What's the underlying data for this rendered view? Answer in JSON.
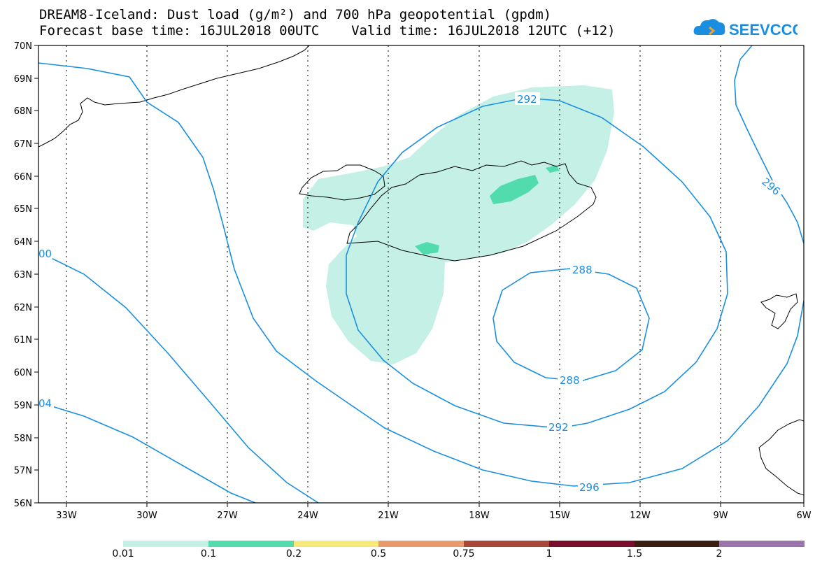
{
  "header": {
    "title_line1": "DREAM8-Iceland: Dust load (g/m²) and 700 hPa geopotential (gpdm)",
    "title_line2": "Forecast base time: 16JUL2018 00UTC    Valid time: 16JUL2018 12UTC (+12)"
  },
  "logo": {
    "text": "SEEVCCC",
    "icon": "cloud-icon",
    "color": "#1a8fe0"
  },
  "map": {
    "lat_labels": [
      "70N",
      "69N",
      "68N",
      "67N",
      "66N",
      "65N",
      "64N",
      "63N",
      "62N",
      "61N",
      "60N",
      "59N",
      "58N",
      "57N",
      "56N"
    ],
    "lon_labels": [
      "33W",
      "30W",
      "27W",
      "24W",
      "21W",
      "18W",
      "15W",
      "12W",
      "9W",
      "6W"
    ],
    "contour_labels": [
      "292",
      "296",
      "288",
      "288",
      "292",
      "296",
      "00",
      "04"
    ],
    "contour_color": "#1a8fe0",
    "dust_color_low": "#c4f0e6",
    "dust_color_mid": "#52dcae"
  },
  "colorbar": {
    "colors": [
      "#c4f0e6",
      "#52dcae",
      "#f7e87a",
      "#e89a6c",
      "#a8473a",
      "#7a0c2c",
      "#3a1e0e",
      "#9a74aa"
    ],
    "labels": [
      "0.01",
      "0.1",
      "0.2",
      "0.5",
      "0.75",
      "1",
      "1.5",
      "2"
    ]
  }
}
